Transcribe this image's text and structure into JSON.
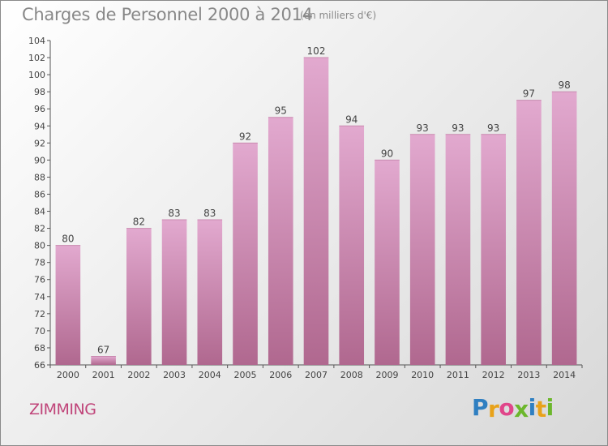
{
  "header": {
    "title": "Charges de Personnel 2000 à 2014",
    "unit": "(en milliers d'€)"
  },
  "footer": {
    "city": "ZIMMING",
    "logo": {
      "letters": [
        "P",
        "r",
        "o",
        "x",
        "i",
        "t",
        "i"
      ],
      "colors": [
        "#2f7fc1",
        "#e8a21a",
        "#e0468a",
        "#6cb72c",
        "#2f7fc1",
        "#e8a21a",
        "#6cb72c"
      ]
    }
  },
  "colors": {
    "bar_top": "#e2a9cf",
    "bar_bottom": "#b0688f",
    "axis": "#555555",
    "city": "#c0457a"
  },
  "chart_data": {
    "type": "bar",
    "title": "Charges de Personnel 2000 à 2014",
    "subtitle": "(en milliers d'€)",
    "xlabel": "",
    "ylabel": "",
    "categories": [
      "2000",
      "2001",
      "2002",
      "2003",
      "2004",
      "2005",
      "2006",
      "2007",
      "2008",
      "2009",
      "2010",
      "2011",
      "2012",
      "2013",
      "2014"
    ],
    "values": [
      80,
      67,
      82,
      83,
      83,
      92,
      95,
      102,
      94,
      90,
      93,
      93,
      93,
      97,
      98
    ],
    "data_labels": [
      "80",
      "67",
      "82",
      "83",
      "83",
      "92",
      "95",
      "102",
      "94",
      "90",
      "93",
      "93",
      "93",
      "97",
      "98"
    ],
    "ylim": [
      66,
      104
    ],
    "yticks": [
      66,
      68,
      70,
      72,
      74,
      76,
      78,
      80,
      82,
      84,
      86,
      88,
      90,
      92,
      94,
      96,
      98,
      100,
      102,
      104
    ],
    "grid": false,
    "legend": "none"
  }
}
